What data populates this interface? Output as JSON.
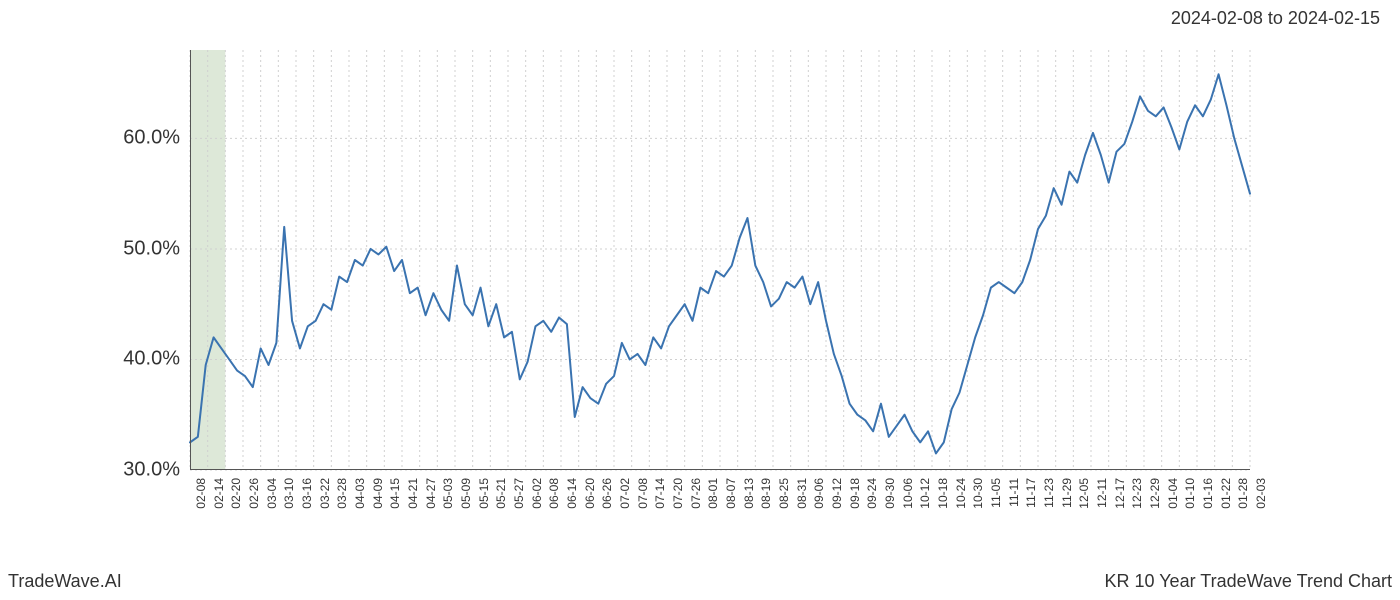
{
  "header": {
    "date_range": "2024-02-08 to 2024-02-15"
  },
  "footer": {
    "brand": "TradeWave.AI",
    "title": "KR 10 Year TradeWave Trend Chart"
  },
  "chart": {
    "type": "line",
    "background_color": "#ffffff",
    "grid_color": "#d0d0d0",
    "grid_dash": "2,3",
    "axis_color": "#555555",
    "line_color": "#3a73b0",
    "line_width": 2,
    "highlight_band": {
      "fill": "#dde8d8",
      "start_index": 0,
      "end_index": 2
    },
    "y_axis": {
      "min": 30.0,
      "max": 68.0,
      "ticks": [
        30.0,
        40.0,
        50.0,
        60.0
      ],
      "tick_labels": [
        "30.0%",
        "40.0%",
        "50.0%",
        "60.0%"
      ],
      "label_fontsize": 20
    },
    "x_axis": {
      "labels": [
        "02-08",
        "02-14",
        "02-20",
        "02-26",
        "03-04",
        "03-10",
        "03-16",
        "03-22",
        "03-28",
        "04-03",
        "04-09",
        "04-15",
        "04-21",
        "04-27",
        "05-03",
        "05-09",
        "05-15",
        "05-21",
        "05-27",
        "06-02",
        "06-08",
        "06-14",
        "06-20",
        "06-26",
        "07-02",
        "07-08",
        "07-14",
        "07-20",
        "07-26",
        "08-01",
        "08-07",
        "08-13",
        "08-19",
        "08-25",
        "08-31",
        "09-06",
        "09-12",
        "09-18",
        "09-24",
        "09-30",
        "10-06",
        "10-12",
        "10-18",
        "10-24",
        "10-30",
        "11-05",
        "11-11",
        "11-17",
        "11-23",
        "11-29",
        "12-05",
        "12-11",
        "12-17",
        "12-23",
        "12-29",
        "01-04",
        "01-10",
        "01-16",
        "01-22",
        "01-28",
        "02-03"
      ],
      "label_fontsize": 12
    },
    "series": {
      "values": [
        32.5,
        33.0,
        39.5,
        42.0,
        41.0,
        40.0,
        39.0,
        38.5,
        37.5,
        41.0,
        39.5,
        41.5,
        52.0,
        43.5,
        41.0,
        43.0,
        43.5,
        45.0,
        44.5,
        47.5,
        47.0,
        49.0,
        48.5,
        50.0,
        49.5,
        50.2,
        48.0,
        49.0,
        46.0,
        46.5,
        44.0,
        46.0,
        44.5,
        43.5,
        48.5,
        45.0,
        44.0,
        46.5,
        43.0,
        45.0,
        42.0,
        42.5,
        38.2,
        39.8,
        43.0,
        43.5,
        42.5,
        43.8,
        43.2,
        34.8,
        37.5,
        36.5,
        36.0,
        37.8,
        38.5,
        41.5,
        40.0,
        40.5,
        39.5,
        42.0,
        41.0,
        43.0,
        44.0,
        45.0,
        43.5,
        46.5,
        46.0,
        48.0,
        47.5,
        48.5,
        51.0,
        52.8,
        48.5,
        47.0,
        44.8,
        45.5,
        47.0,
        46.5,
        47.5,
        45.0,
        47.0,
        43.5,
        40.5,
        38.5,
        36.0,
        35.0,
        34.5,
        33.5,
        36.0,
        33.0,
        34.0,
        35.0,
        33.5,
        32.5,
        33.5,
        31.5,
        32.5,
        35.5,
        37.0,
        39.5,
        42.0,
        44.0,
        46.5,
        47.0,
        46.5,
        46.0,
        47.0,
        49.0,
        51.8,
        53.0,
        55.5,
        54.0,
        57.0,
        56.0,
        58.5,
        60.5,
        58.5,
        56.0,
        58.8,
        59.5,
        61.5,
        63.8,
        62.5,
        62.0,
        62.8,
        61.0,
        59.0,
        61.5,
        63.0,
        62.0,
        63.5,
        65.8,
        63.0,
        60.0,
        57.5,
        55.0
      ]
    }
  }
}
